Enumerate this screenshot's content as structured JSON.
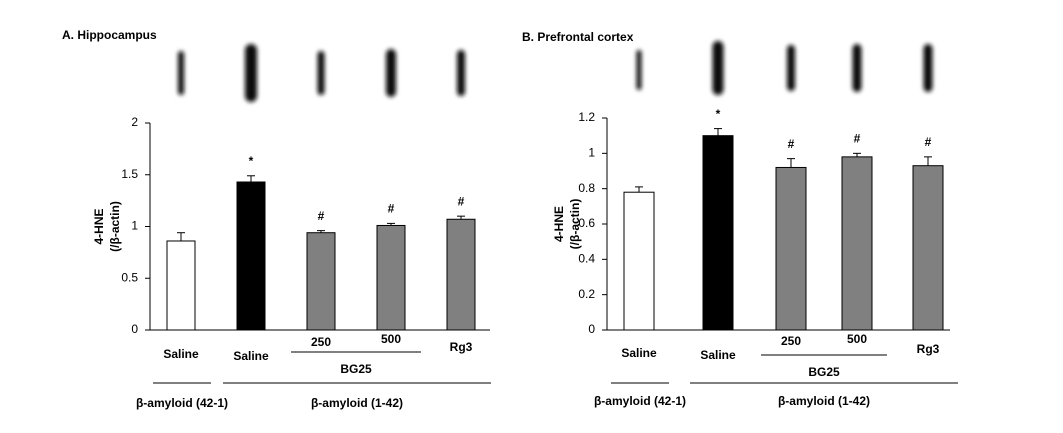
{
  "chart_data": [
    {
      "type": "bar",
      "title": "A. Hippocampus",
      "ylabel": [
        "4-HNE",
        "(/β-actin)"
      ],
      "categories": [
        "Saline",
        "Saline",
        "250",
        "500",
        "Rg3"
      ],
      "values": [
        0.86,
        1.43,
        0.94,
        1.01,
        1.07
      ],
      "errors": [
        0.08,
        0.06,
        0.02,
        0.02,
        0.03
      ],
      "colors": [
        "#ffffff",
        "#000000",
        "#808080",
        "#808080",
        "#808080"
      ],
      "markers": [
        null,
        "*",
        "#",
        "#",
        "#"
      ],
      "bracket_label": "BG25",
      "group_labels": [
        "β-amyloid (42-1)",
        "β-amyloid (1-42)"
      ],
      "ylim": [
        0,
        2
      ],
      "yticks": [
        0,
        0.5,
        1,
        1.5,
        2
      ]
    },
    {
      "type": "bar",
      "title": "B. Prefrontal cortex",
      "ylabel": [
        "4-HNE",
        "(/β-actin)"
      ],
      "categories": [
        "Saline",
        "Saline",
        "250",
        "500",
        "Rg3"
      ],
      "values": [
        0.78,
        1.1,
        0.92,
        0.98,
        0.93
      ],
      "errors": [
        0.03,
        0.04,
        0.05,
        0.02,
        0.05
      ],
      "colors": [
        "#ffffff",
        "#000000",
        "#808080",
        "#808080",
        "#808080"
      ],
      "markers": [
        null,
        "*",
        "#",
        "#",
        "#"
      ],
      "bracket_label": "BG25",
      "group_labels": [
        "β-amyloid (42-1)",
        "β-amyloid (1-42)"
      ],
      "ylim": [
        0,
        1.2
      ],
      "yticks": [
        0,
        0.2,
        0.4,
        0.6,
        0.8,
        1,
        1.2
      ]
    }
  ]
}
